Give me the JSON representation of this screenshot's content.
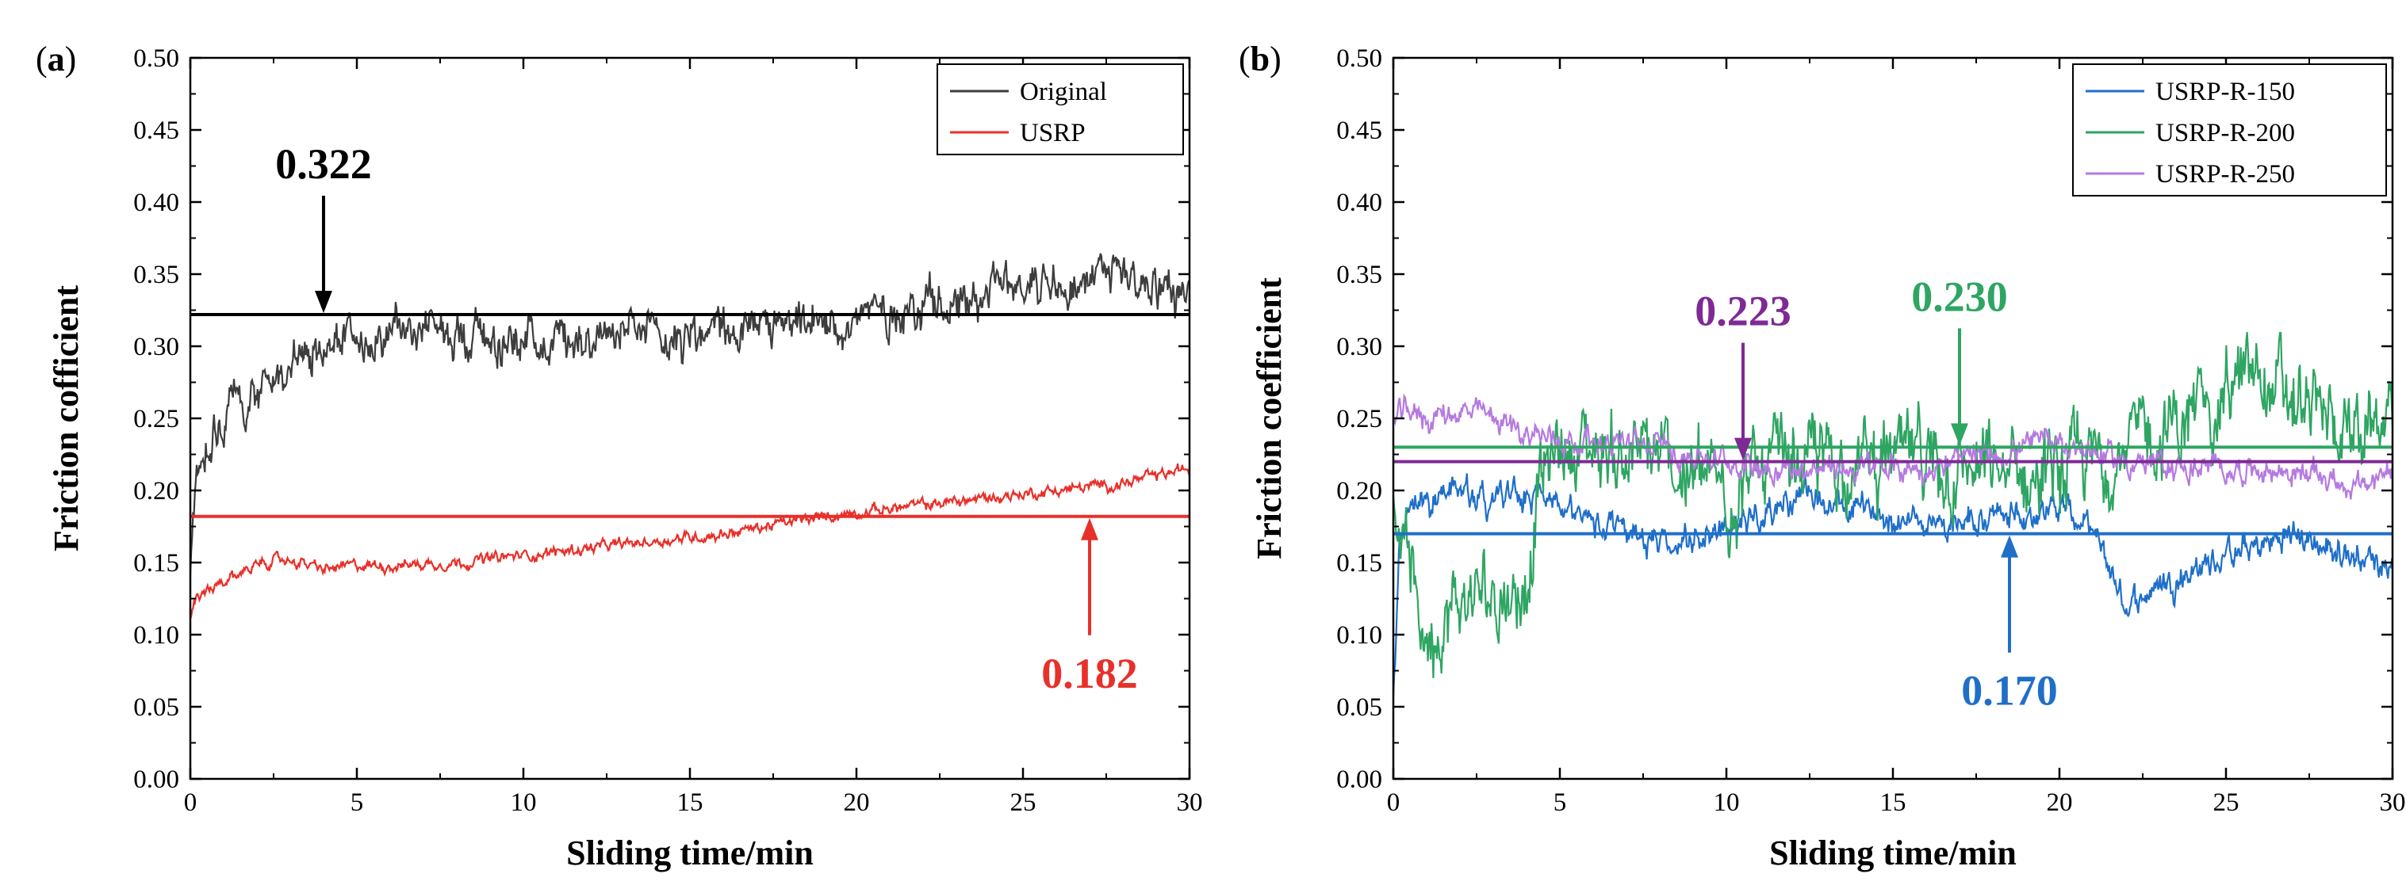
{
  "chart_data": [
    {
      "panel": "(a)",
      "panel_letter": "a",
      "type": "line",
      "xlabel": "Sliding time/min",
      "ylabel": "Friction cofficient",
      "xlim": [
        0,
        30
      ],
      "ylim": [
        0,
        0.5
      ],
      "xticks": [
        "0",
        "5",
        "10",
        "15",
        "20",
        "25",
        "30"
      ],
      "yticks": [
        "0.00",
        "0.05",
        "0.10",
        "0.15",
        "0.20",
        "0.25",
        "0.30",
        "0.35",
        "0.40",
        "0.45",
        "0.50"
      ],
      "legend_position": "top-right",
      "series": [
        {
          "name": "Original",
          "color": "#3d3d3d",
          "noise": 0.012,
          "x": [
            0,
            0.15,
            0.5,
            1,
            2,
            3,
            4,
            5,
            6,
            8,
            10,
            12,
            14,
            16,
            18,
            20,
            22,
            24,
            25,
            26,
            27,
            28,
            29,
            30
          ],
          "y": [
            0.14,
            0.2,
            0.235,
            0.25,
            0.27,
            0.285,
            0.295,
            0.305,
            0.31,
            0.31,
            0.305,
            0.31,
            0.305,
            0.31,
            0.31,
            0.32,
            0.33,
            0.34,
            0.345,
            0.35,
            0.345,
            0.35,
            0.345,
            0.335
          ]
        },
        {
          "name": "USRP",
          "color": "#e8302a",
          "noise": 0.003,
          "x": [
            0,
            0.2,
            0.6,
            1,
            2,
            3,
            4,
            5,
            6,
            8,
            10,
            12,
            14,
            16,
            18,
            20,
            22,
            24,
            26,
            28,
            29,
            30
          ],
          "y": [
            0.11,
            0.125,
            0.13,
            0.135,
            0.15,
            0.152,
            0.145,
            0.148,
            0.148,
            0.15,
            0.155,
            0.16,
            0.165,
            0.17,
            0.178,
            0.185,
            0.19,
            0.195,
            0.2,
            0.205,
            0.21,
            0.215
          ]
        }
      ],
      "mean_lines": [
        {
          "value": 0.322,
          "color": "#000000"
        },
        {
          "value": 0.182,
          "color": "#e8302a"
        }
      ],
      "annotations": [
        {
          "text": "0.322",
          "x": 4,
          "target_y": 0.322,
          "arrow": "down",
          "color": "#000000"
        },
        {
          "text": "0.182",
          "x": 27,
          "target_y": 0.182,
          "arrow": "up",
          "color": "#e8302a"
        }
      ]
    },
    {
      "panel": "(b)",
      "panel_letter": "b",
      "type": "line",
      "xlabel": "Sliding time/min",
      "ylabel": "Friction coefficient",
      "xlim": [
        0,
        30
      ],
      "ylim": [
        0,
        0.5
      ],
      "xticks": [
        "0",
        "5",
        "10",
        "15",
        "20",
        "25",
        "30"
      ],
      "yticks": [
        "0.00",
        "0.05",
        "0.10",
        "0.15",
        "0.20",
        "0.25",
        "0.30",
        "0.35",
        "0.40",
        "0.45",
        "0.50"
      ],
      "legend_position": "top-right",
      "series": [
        {
          "name": "USRP-R-150",
          "color": "#1f6fc9",
          "noise": 0.008,
          "x": [
            0,
            0.2,
            0.5,
            1,
            2,
            3,
            4,
            5,
            6,
            7,
            8,
            10,
            12,
            14,
            16,
            18,
            20,
            21,
            22,
            23,
            24,
            25,
            26,
            27,
            28,
            29,
            30
          ],
          "y": [
            0.05,
            0.17,
            0.19,
            0.195,
            0.2,
            0.19,
            0.2,
            0.185,
            0.175,
            0.17,
            0.16,
            0.175,
            0.195,
            0.185,
            0.18,
            0.18,
            0.19,
            0.17,
            0.12,
            0.135,
            0.145,
            0.155,
            0.16,
            0.17,
            0.16,
            0.155,
            0.15
          ]
        },
        {
          "name": "USRP-R-200",
          "color": "#2ea562",
          "noise": 0.022,
          "x": [
            0,
            0.3,
            0.7,
            1,
            2,
            3,
            4,
            4.3,
            5,
            6,
            8,
            10,
            12,
            14,
            16,
            18,
            20,
            22,
            24,
            25,
            26,
            27,
            28,
            29,
            30
          ],
          "y": [
            0.2,
            0.17,
            0.12,
            0.1,
            0.12,
            0.13,
            0.13,
            0.2,
            0.23,
            0.23,
            0.22,
            0.2,
            0.22,
            0.22,
            0.22,
            0.21,
            0.21,
            0.23,
            0.25,
            0.27,
            0.28,
            0.26,
            0.25,
            0.24,
            0.25
          ]
        },
        {
          "name": "USRP-R-250",
          "color": "#b57ae0",
          "noise": 0.007,
          "x": [
            0,
            0.5,
            1,
            2,
            3,
            4,
            5,
            6,
            8,
            10,
            12,
            14,
            16,
            18,
            20,
            22,
            24,
            26,
            28,
            29,
            30
          ],
          "y": [
            0.25,
            0.255,
            0.25,
            0.255,
            0.25,
            0.24,
            0.235,
            0.235,
            0.23,
            0.22,
            0.215,
            0.215,
            0.215,
            0.225,
            0.235,
            0.22,
            0.215,
            0.215,
            0.21,
            0.2,
            0.215
          ]
        }
      ],
      "mean_lines": [
        {
          "value": 0.23,
          "color": "#2ea562"
        },
        {
          "value": 0.22,
          "color": "#7e2a94"
        },
        {
          "value": 0.17,
          "color": "#1f6fc9"
        }
      ],
      "annotations": [
        {
          "text": "0.223",
          "x": 10.5,
          "target_y": 0.22,
          "arrow": "down",
          "color": "#7e2a94"
        },
        {
          "text": "0.230",
          "x": 17,
          "target_y": 0.23,
          "arrow": "down",
          "color": "#2ea562"
        },
        {
          "text": "0.170",
          "x": 18.5,
          "target_y": 0.17,
          "arrow": "up",
          "color": "#1f6fc9"
        }
      ]
    }
  ]
}
